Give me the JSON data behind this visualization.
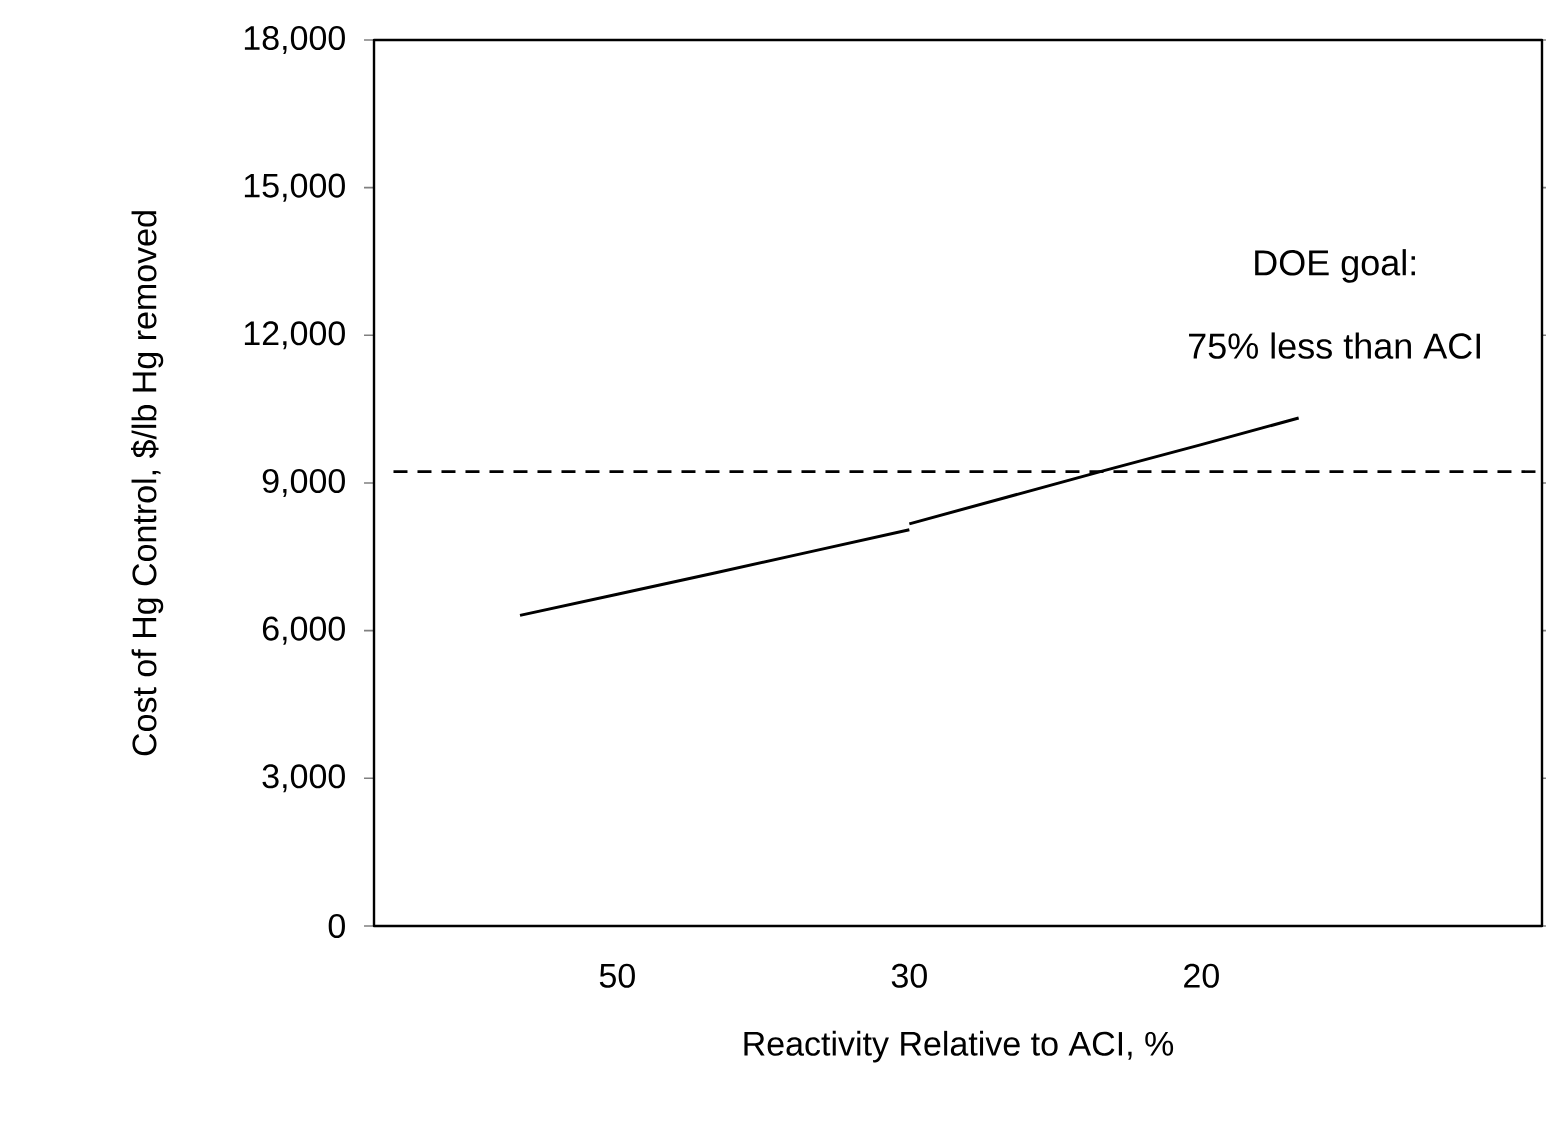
{
  "chart_data": {
    "type": "line",
    "xlabel": "Reactivity Relative to ACI, %",
    "ylabel": "Cost of Hg Control, $/lb Hg removed",
    "categories": [
      null,
      null,
      "50",
      null,
      null,
      "30",
      null,
      null,
      "20",
      null,
      null,
      null
    ],
    "ylim": [
      0,
      18000
    ],
    "yticks": [
      0,
      {
        "value": 3000,
        "label": "3,000"
      },
      {
        "value": 6000,
        "label": "6,000"
      },
      {
        "value": 9000,
        "label": "9,000"
      },
      {
        "value": 12000,
        "label": "12,000"
      },
      {
        "value": 15000,
        "label": "15,000"
      },
      {
        "value": 18000,
        "label": "18,000"
      }
    ],
    "series": [
      {
        "color": "#000000",
        "values": [
          null,
          6310,
          6740,
          7170,
          7610,
          8050,
          null,
          null,
          null,
          null,
          null,
          null
        ]
      },
      {
        "color": "#000000",
        "values": [
          null,
          null,
          null,
          null,
          null,
          8170,
          8710,
          9250,
          9780,
          10320,
          null,
          null
        ]
      }
    ],
    "ref_lines": [
      {
        "axis": "y",
        "value": 9230,
        "color": "#000000",
        "line_style": "dashed"
      }
    ],
    "annotations": [
      "DOE goal:",
      "75% less than ACI"
    ],
    "grid": false,
    "marker": "none",
    "line_style": "solid"
  }
}
